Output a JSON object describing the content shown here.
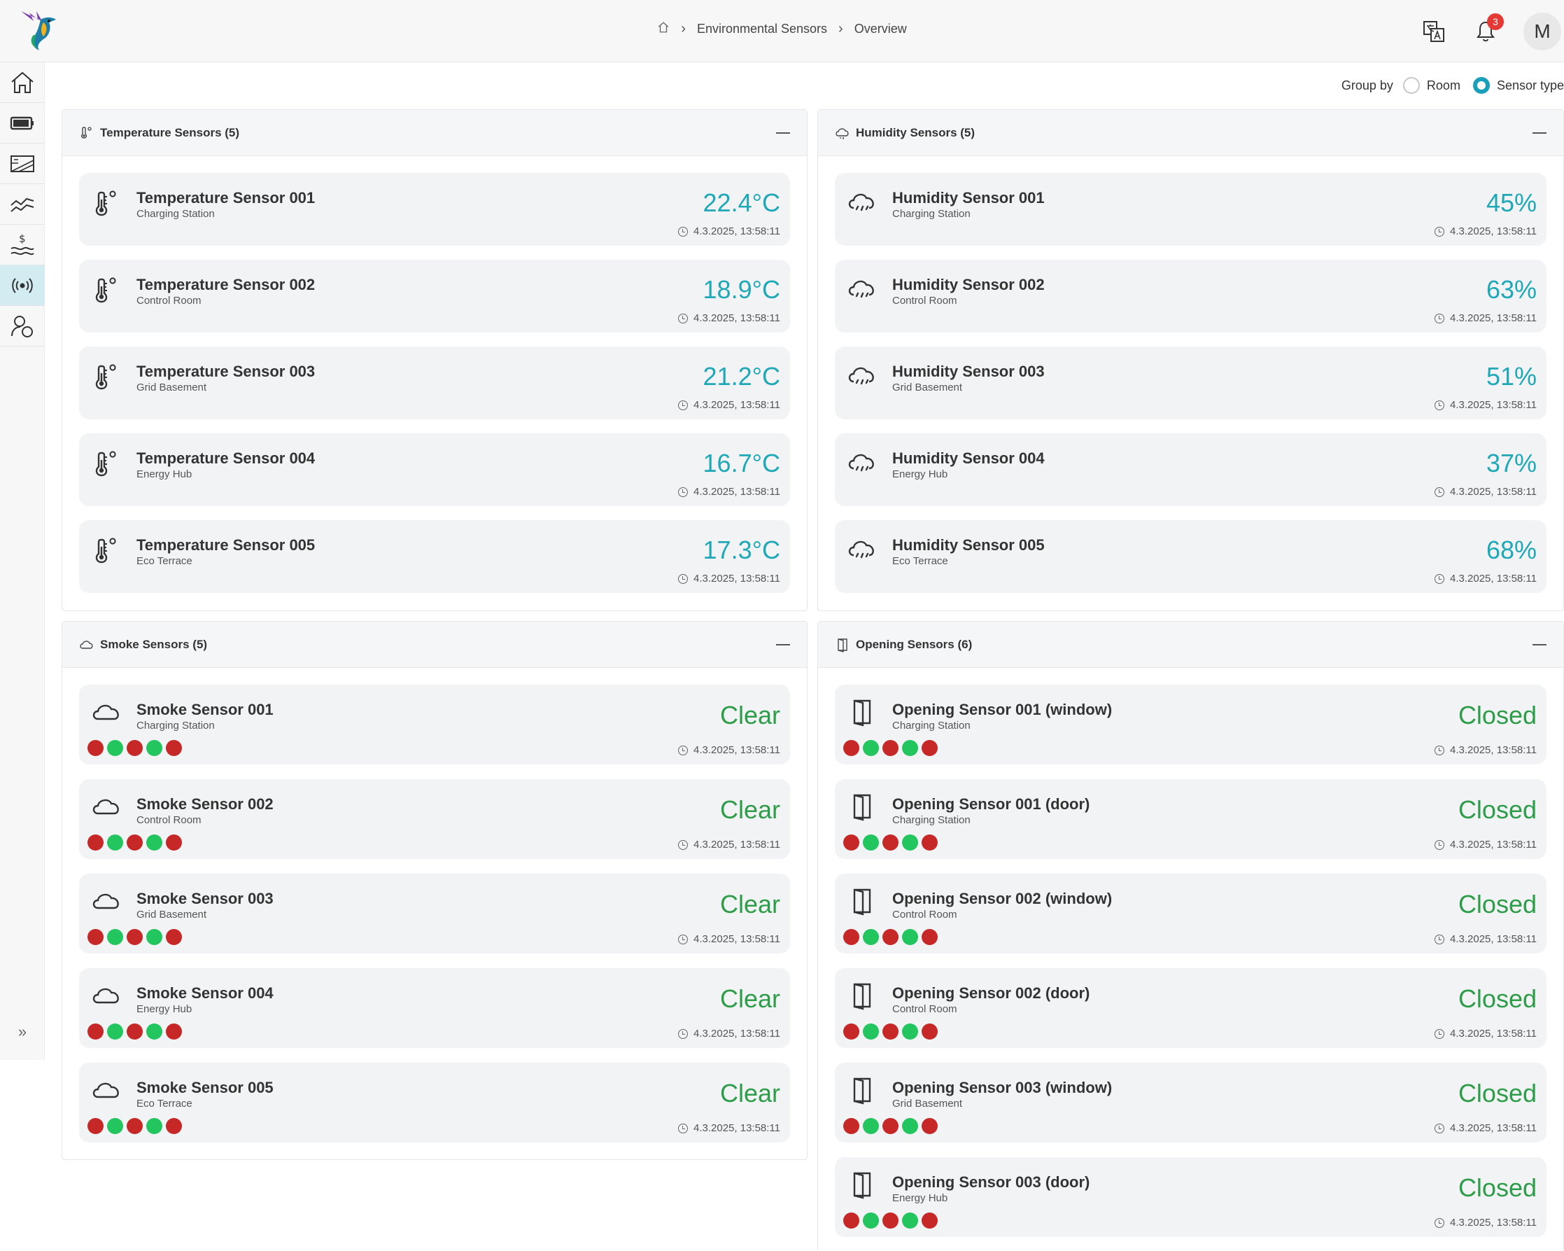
{
  "breadcrumb": {
    "section": "Environmental Sensors",
    "page": "Overview"
  },
  "notifications": {
    "count": "3"
  },
  "user": {
    "initial": "M"
  },
  "group_by": {
    "label": "Group by",
    "options": [
      "Room",
      "Sensor type"
    ],
    "selected": "Sensor type"
  },
  "colors": {
    "accent": "#1a9fbb",
    "value_teal": "#1fa8b8",
    "status_green": "#2e9d4a",
    "dot_red": "#c62828",
    "dot_green": "#22c55e",
    "active_nav": "#d3ecf2"
  },
  "sidebar": {
    "items": [
      "home-icon",
      "battery-icon",
      "solar-panel-icon",
      "chart-line-icon",
      "price-icon",
      "sensors-icon",
      "users-icon"
    ],
    "active": "sensors-icon"
  },
  "panels": {
    "temperature": {
      "title": "Temperature Sensors (5)",
      "sensors": [
        {
          "name": "Temperature Sensor 001",
          "room": "Charging Station",
          "value": "22.4°C",
          "time": "4.3.2025, 13:58:11"
        },
        {
          "name": "Temperature Sensor 002",
          "room": "Control Room",
          "value": "18.9°C",
          "time": "4.3.2025, 13:58:11"
        },
        {
          "name": "Temperature Sensor 003",
          "room": "Grid Basement",
          "value": "21.2°C",
          "time": "4.3.2025, 13:58:11"
        },
        {
          "name": "Temperature Sensor 004",
          "room": "Energy Hub",
          "value": "16.7°C",
          "time": "4.3.2025, 13:58:11"
        },
        {
          "name": "Temperature Sensor 005",
          "room": "Eco Terrace",
          "value": "17.3°C",
          "time": "4.3.2025, 13:58:11"
        }
      ]
    },
    "humidity": {
      "title": "Humidity Sensors (5)",
      "sensors": [
        {
          "name": "Humidity Sensor 001",
          "room": "Charging Station",
          "value": "45%",
          "time": "4.3.2025, 13:58:11"
        },
        {
          "name": "Humidity Sensor 002",
          "room": "Control Room",
          "value": "63%",
          "time": "4.3.2025, 13:58:11"
        },
        {
          "name": "Humidity Sensor 003",
          "room": "Grid Basement",
          "value": "51%",
          "time": "4.3.2025, 13:58:11"
        },
        {
          "name": "Humidity Sensor 004",
          "room": "Energy Hub",
          "value": "37%",
          "time": "4.3.2025, 13:58:11"
        },
        {
          "name": "Humidity Sensor 005",
          "room": "Eco Terrace",
          "value": "68%",
          "time": "4.3.2025, 13:58:11"
        }
      ]
    },
    "smoke": {
      "title": "Smoke Sensors (5)",
      "sensors": [
        {
          "name": "Smoke Sensor 001",
          "room": "Charging Station",
          "value": "Clear",
          "time": "4.3.2025, 13:58:11",
          "dots": [
            "red",
            "green",
            "red",
            "green",
            "red"
          ]
        },
        {
          "name": "Smoke Sensor 002",
          "room": "Control Room",
          "value": "Clear",
          "time": "4.3.2025, 13:58:11",
          "dots": [
            "red",
            "green",
            "red",
            "green",
            "red"
          ]
        },
        {
          "name": "Smoke Sensor 003",
          "room": "Grid Basement",
          "value": "Clear",
          "time": "4.3.2025, 13:58:11",
          "dots": [
            "red",
            "green",
            "red",
            "green",
            "red"
          ]
        },
        {
          "name": "Smoke Sensor 004",
          "room": "Energy Hub",
          "value": "Clear",
          "time": "4.3.2025, 13:58:11",
          "dots": [
            "red",
            "green",
            "red",
            "green",
            "red"
          ]
        },
        {
          "name": "Smoke Sensor 005",
          "room": "Eco Terrace",
          "value": "Clear",
          "time": "4.3.2025, 13:58:11",
          "dots": [
            "red",
            "green",
            "red",
            "green",
            "red"
          ]
        }
      ]
    },
    "opening": {
      "title": "Opening Sensors (6)",
      "sensors": [
        {
          "name": "Opening Sensor 001 (window)",
          "room": "Charging Station",
          "value": "Closed",
          "time": "4.3.2025, 13:58:11",
          "dots": [
            "red",
            "green",
            "red",
            "green",
            "red"
          ]
        },
        {
          "name": "Opening Sensor 001 (door)",
          "room": "Charging Station",
          "value": "Closed",
          "time": "4.3.2025, 13:58:11",
          "dots": [
            "red",
            "green",
            "red",
            "green",
            "red"
          ]
        },
        {
          "name": "Opening Sensor 002 (window)",
          "room": "Control Room",
          "value": "Closed",
          "time": "4.3.2025, 13:58:11",
          "dots": [
            "red",
            "green",
            "red",
            "green",
            "red"
          ]
        },
        {
          "name": "Opening Sensor 002 (door)",
          "room": "Control Room",
          "value": "Closed",
          "time": "4.3.2025, 13:58:11",
          "dots": [
            "red",
            "green",
            "red",
            "green",
            "red"
          ]
        },
        {
          "name": "Opening Sensor 003 (window)",
          "room": "Grid Basement",
          "value": "Closed",
          "time": "4.3.2025, 13:58:11",
          "dots": [
            "red",
            "green",
            "red",
            "green",
            "red"
          ]
        },
        {
          "name": "Opening Sensor 003 (door)",
          "room": "Energy Hub",
          "value": "Closed",
          "time": "4.3.2025, 13:58:11",
          "dots": [
            "red",
            "green",
            "red",
            "green",
            "red"
          ]
        }
      ]
    }
  }
}
